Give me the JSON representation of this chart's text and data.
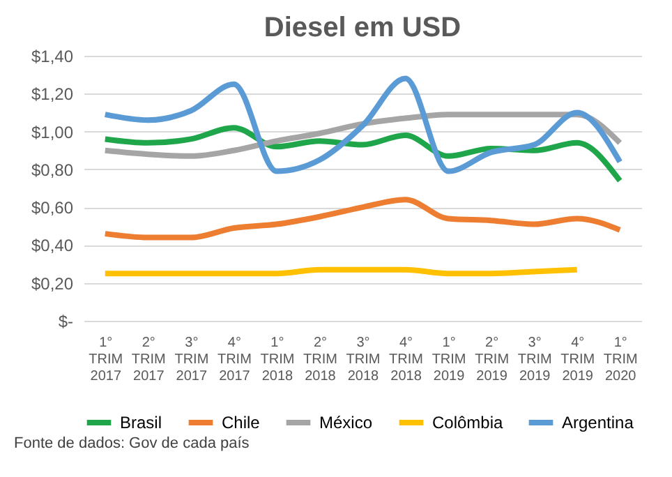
{
  "chart_data": {
    "type": "line",
    "title": "Diesel em USD",
    "categories": [
      "1°\nTRIM\n2017",
      "2°\nTRIM\n2017",
      "3°\nTRIM\n2017",
      "4°\nTRIM\n2017",
      "1°\nTRIM\n2018",
      "2°\nTRIM\n2018",
      "3°\nTRIM\n2018",
      "4°\nTRIM\n2018",
      "1°\nTRIM\n2019",
      "2°\nTRIM\n2019",
      "3°\nTRIM\n2019",
      "4°\nTRIM\n2019",
      "1°\nTRIM\n2020"
    ],
    "series": [
      {
        "name": "Brasil",
        "color": "#1fa64b",
        "values": [
          0.96,
          0.94,
          0.96,
          1.02,
          0.92,
          0.95,
          0.93,
          0.98,
          0.87,
          0.91,
          0.9,
          0.94,
          0.74
        ]
      },
      {
        "name": "Chile",
        "color": "#ed7d31",
        "values": [
          0.46,
          0.44,
          0.44,
          0.49,
          0.51,
          0.55,
          0.6,
          0.64,
          0.54,
          0.53,
          0.51,
          0.54,
          0.48
        ]
      },
      {
        "name": "México",
        "color": "#a5a5a5",
        "values": [
          0.9,
          0.88,
          0.87,
          0.9,
          0.95,
          0.99,
          1.04,
          1.07,
          1.09,
          1.09,
          1.09,
          1.09,
          0.94
        ]
      },
      {
        "name": "Colômbia",
        "color": "#ffc000",
        "values": [
          0.25,
          0.25,
          0.25,
          0.25,
          0.25,
          0.27,
          0.27,
          0.27,
          0.25,
          0.25,
          0.26,
          0.27,
          null
        ]
      },
      {
        "name": "Argentina",
        "color": "#5b9bd5",
        "values": [
          1.09,
          1.06,
          1.11,
          1.25,
          0.79,
          0.85,
          1.03,
          1.28,
          0.79,
          0.89,
          0.93,
          1.1,
          0.84
        ]
      }
    ],
    "ylim": [
      0,
      1.4
    ],
    "yticks": [
      {
        "value": 0,
        "label": "$-"
      },
      {
        "value": 0.2,
        "label": "$0,20"
      },
      {
        "value": 0.4,
        "label": "$0,40"
      },
      {
        "value": 0.6,
        "label": "$0,60"
      },
      {
        "value": 0.8,
        "label": "$0,80"
      },
      {
        "value": 1.0,
        "label": "$1,00"
      },
      {
        "value": 1.2,
        "label": "$1,20"
      },
      {
        "value": 1.4,
        "label": "$1,40"
      }
    ],
    "grid": "y",
    "legend": "bottom",
    "marker": "none",
    "line_style": "solid",
    "annotations": [
      "Fonte de dados: Gov de cada país"
    ]
  }
}
